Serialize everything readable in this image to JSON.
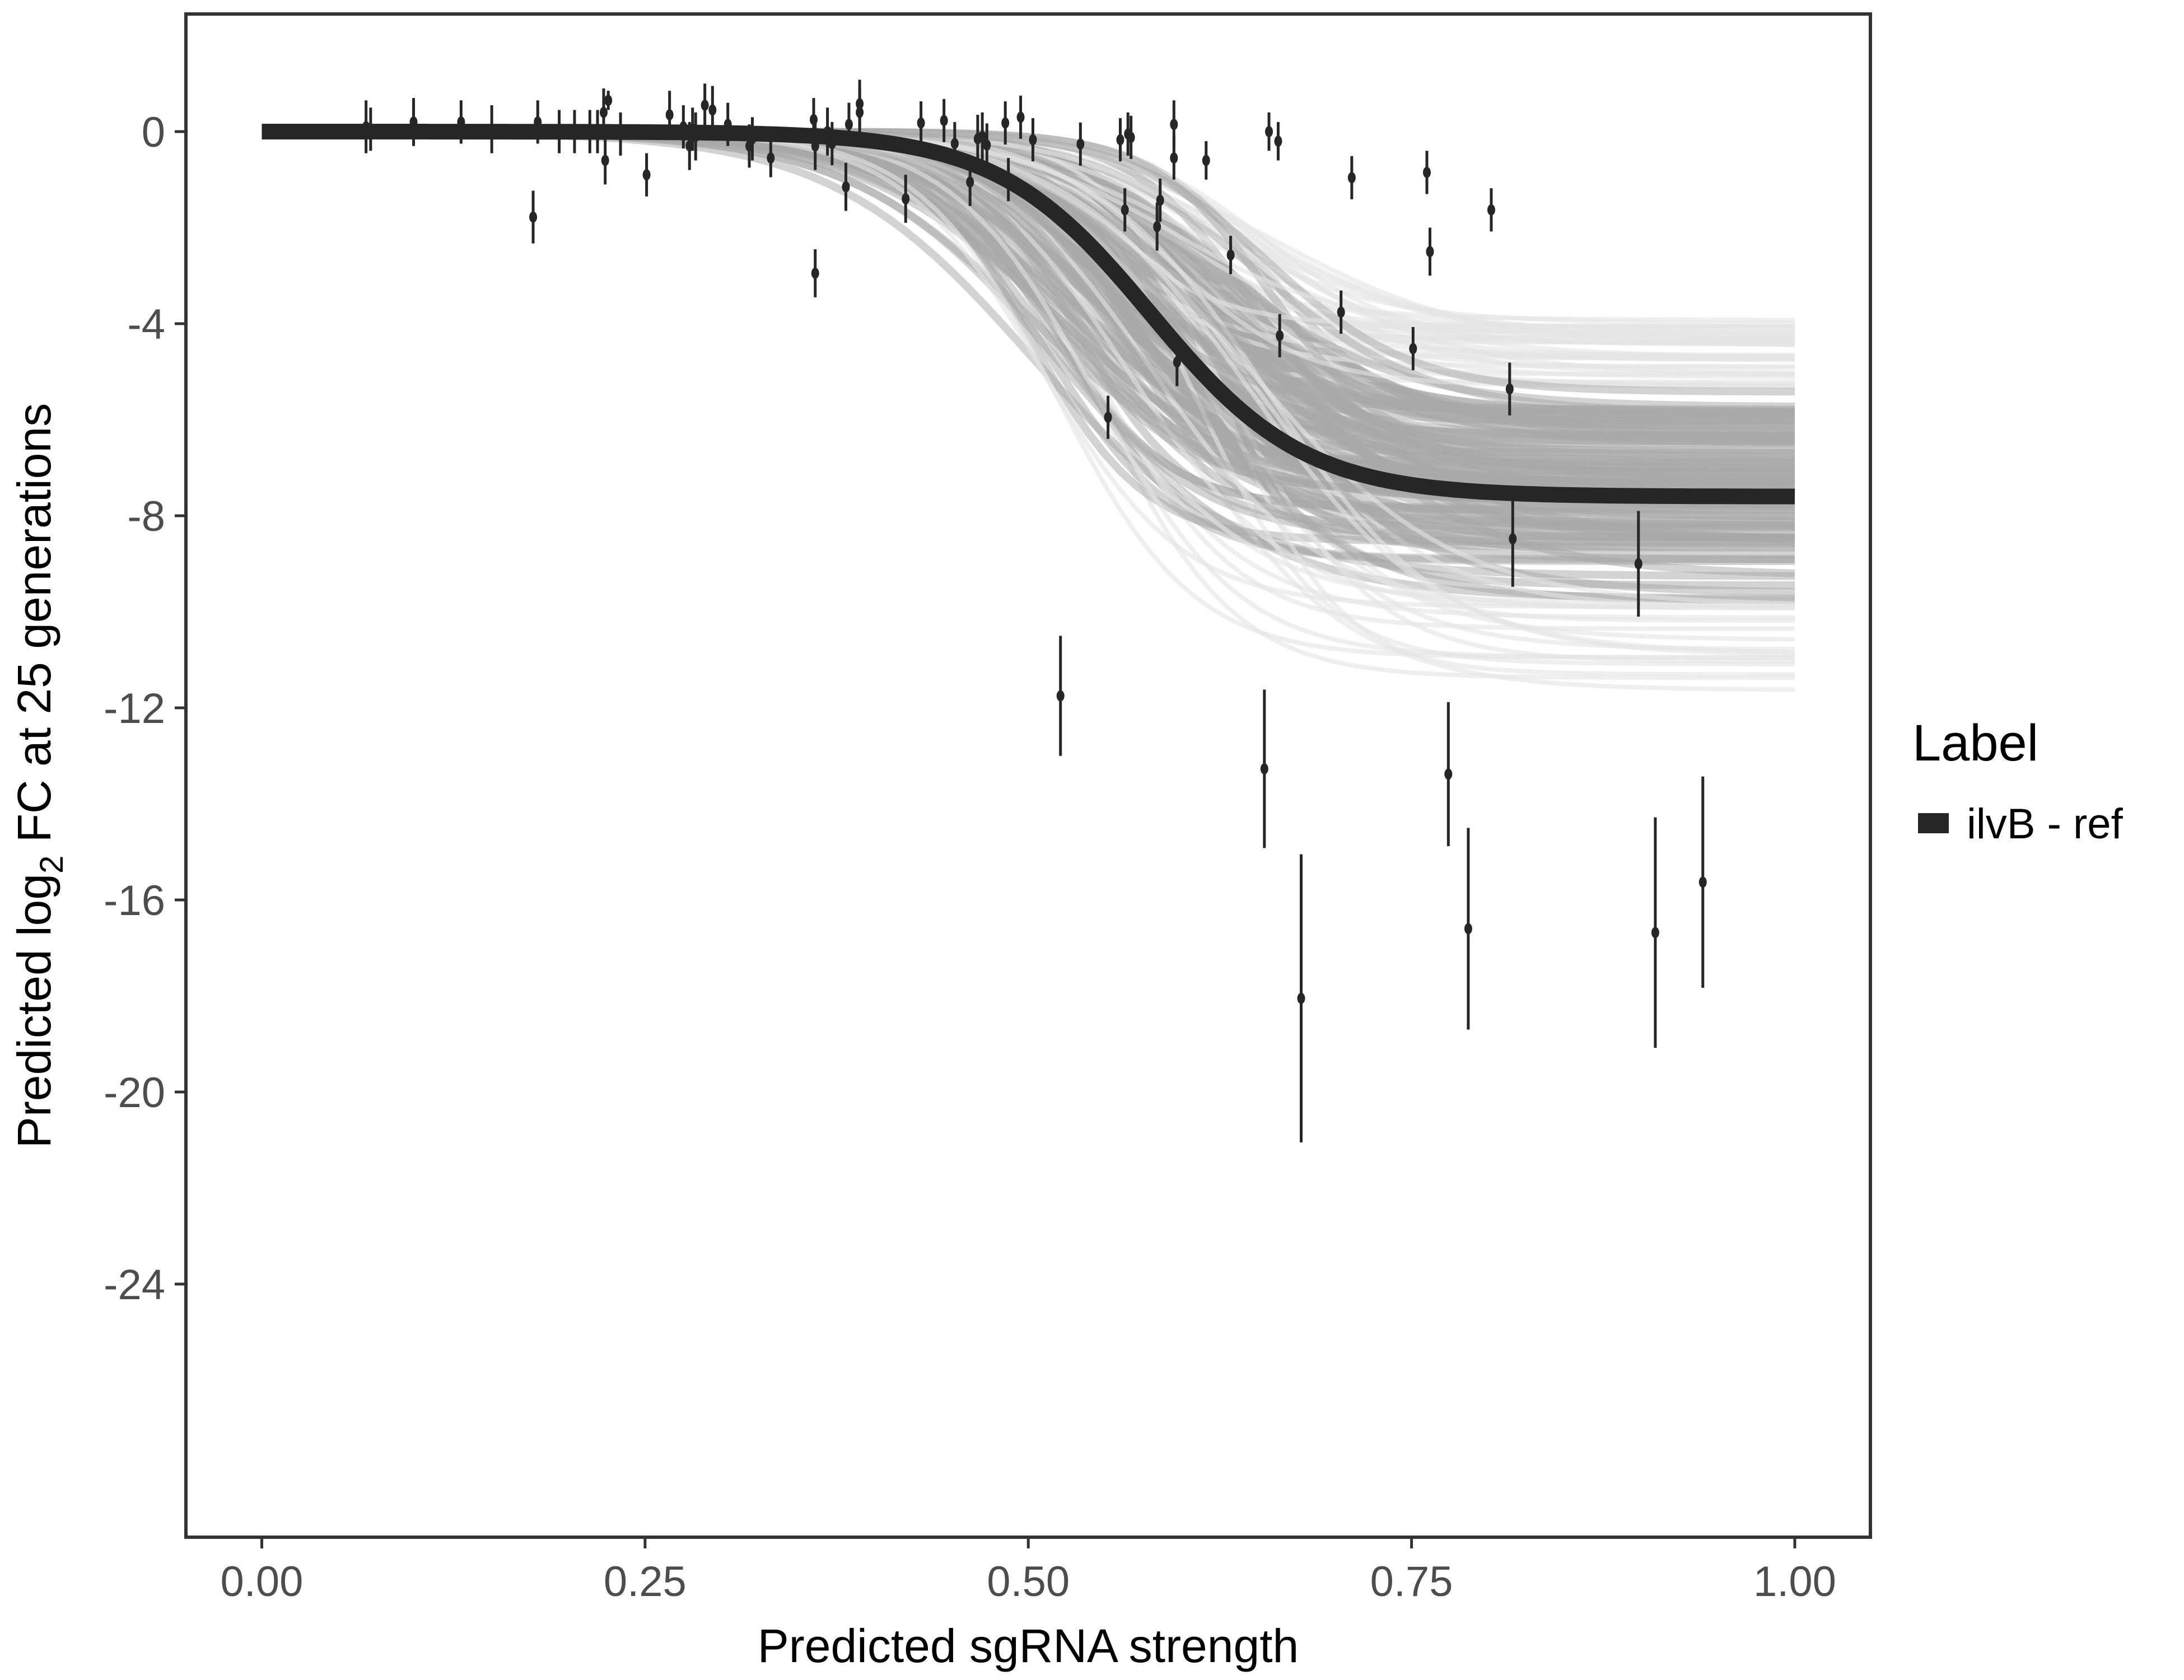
{
  "chart_data": {
    "type": "scatter",
    "xlabel": "Predicted sgRNA strength",
    "ylabel_parts": {
      "pre": "Predicted  log",
      "sub": "2",
      "post": " FC at 25 generations"
    },
    "xlim": [
      -0.05,
      1.05
    ],
    "ylim": [
      -29.2,
      2.5
    ],
    "xticks": [
      0,
      0.25,
      0.5,
      0.75,
      1
    ],
    "xtick_labels": [
      "0.00",
      "0.25",
      "0.50",
      "0.75",
      "1.00"
    ],
    "yticks": [
      0,
      -4,
      -8,
      -12,
      -16,
      -20,
      -24
    ],
    "ytick_labels": [
      "0",
      "-4",
      "-8",
      "-12",
      "-16",
      "-20",
      "-24"
    ],
    "grid": false,
    "legend": {
      "title": "Label",
      "placement": "right",
      "entries": [
        {
          "label": "ilvB - ref",
          "color": "#262626"
        }
      ]
    },
    "fit_curve": {
      "form": "logistic",
      "upper": 0,
      "lower": -7.6,
      "midpoint": 0.58,
      "scale": 0.05,
      "color": "#262626"
    },
    "posterior_band": {
      "lower_asymptote_range": [
        -11.8,
        -3.8
      ],
      "color": "#aaaaaa"
    },
    "points": [
      {
        "x": 0.068,
        "y": 0.1,
        "err": 0.55
      },
      {
        "x": 0.071,
        "y": 0.05,
        "err": 0.45
      },
      {
        "x": 0.099,
        "y": 0.2,
        "err": 0.5
      },
      {
        "x": 0.13,
        "y": 0.2,
        "err": 0.45
      },
      {
        "x": 0.15,
        "y": 0.05,
        "err": 0.5
      },
      {
        "x": 0.177,
        "y": -1.78,
        "err": 0.55
      },
      {
        "x": 0.18,
        "y": 0.2,
        "err": 0.45
      },
      {
        "x": 0.194,
        "y": 0.0,
        "err": 0.45
      },
      {
        "x": 0.204,
        "y": 0.0,
        "err": 0.45
      },
      {
        "x": 0.214,
        "y": 0.0,
        "err": 0.45
      },
      {
        "x": 0.219,
        "y": 0.0,
        "err": 0.45
      },
      {
        "x": 0.223,
        "y": 0.4,
        "err": 0.5
      },
      {
        "x": 0.224,
        "y": -0.6,
        "err": 0.5
      },
      {
        "x": 0.226,
        "y": 0.65,
        "err": 0.2
      },
      {
        "x": 0.234,
        "y": -0.05,
        "err": 0.45
      },
      {
        "x": 0.251,
        "y": -0.9,
        "err": 0.45
      },
      {
        "x": 0.266,
        "y": 0.35,
        "err": 0.5
      },
      {
        "x": 0.275,
        "y": 0.1,
        "err": 0.45
      },
      {
        "x": 0.279,
        "y": -0.3,
        "err": 0.5
      },
      {
        "x": 0.281,
        "y": 0.05,
        "err": 0.45
      },
      {
        "x": 0.283,
        "y": -0.1,
        "err": 0.5
      },
      {
        "x": 0.289,
        "y": 0.55,
        "err": 0.45
      },
      {
        "x": 0.294,
        "y": 0.45,
        "err": 0.5
      },
      {
        "x": 0.304,
        "y": 0.15,
        "err": 0.45
      },
      {
        "x": 0.318,
        "y": -0.3,
        "err": 0.45
      },
      {
        "x": 0.32,
        "y": -0.15,
        "err": 0.45
      },
      {
        "x": 0.332,
        "y": -0.55,
        "err": 0.4
      },
      {
        "x": 0.361,
        "y": -2.95,
        "err": 0.5
      },
      {
        "x": 0.36,
        "y": 0.25,
        "err": 0.45
      },
      {
        "x": 0.361,
        "y": -0.3,
        "err": 0.5
      },
      {
        "x": 0.369,
        "y": 0.0,
        "err": 0.5
      },
      {
        "x": 0.372,
        "y": -0.25,
        "err": 0.45
      },
      {
        "x": 0.381,
        "y": -1.15,
        "err": 0.5
      },
      {
        "x": 0.383,
        "y": 0.15,
        "err": 0.45
      },
      {
        "x": 0.39,
        "y": 0.4,
        "err": 0.5
      },
      {
        "x": 0.39,
        "y": 0.58,
        "err": 0.5
      },
      {
        "x": 0.42,
        "y": -1.4,
        "err": 0.5
      },
      {
        "x": 0.43,
        "y": 0.18,
        "err": 0.45
      },
      {
        "x": 0.445,
        "y": 0.23,
        "err": 0.45
      },
      {
        "x": 0.452,
        "y": -0.25,
        "err": 0.45
      },
      {
        "x": 0.462,
        "y": -1.05,
        "err": 0.5
      },
      {
        "x": 0.467,
        "y": -0.15,
        "err": 0.5
      },
      {
        "x": 0.47,
        "y": -0.1,
        "err": 0.5
      },
      {
        "x": 0.473,
        "y": -0.28,
        "err": 0.45
      },
      {
        "x": 0.485,
        "y": 0.18,
        "err": 0.45
      },
      {
        "x": 0.487,
        "y": -1.0,
        "err": 0.45
      },
      {
        "x": 0.495,
        "y": 0.3,
        "err": 0.45
      },
      {
        "x": 0.503,
        "y": -0.17,
        "err": 0.45
      },
      {
        "x": 0.521,
        "y": -11.75,
        "err": 1.25
      },
      {
        "x": 0.534,
        "y": -0.26,
        "err": 0.45
      },
      {
        "x": 0.552,
        "y": -5.95,
        "err": 0.45
      },
      {
        "x": 0.56,
        "y": -0.17,
        "err": 0.45
      },
      {
        "x": 0.563,
        "y": -1.63,
        "err": 0.45
      },
      {
        "x": 0.565,
        "y": -0.05,
        "err": 0.45
      },
      {
        "x": 0.567,
        "y": -0.12,
        "err": 0.45
      },
      {
        "x": 0.584,
        "y": -1.98,
        "err": 0.5
      },
      {
        "x": 0.586,
        "y": -1.43,
        "err": 0.45
      },
      {
        "x": 0.595,
        "y": 0.15,
        "err": 0.5
      },
      {
        "x": 0.595,
        "y": -0.55,
        "err": 0.45
      },
      {
        "x": 0.597,
        "y": -4.8,
        "err": 0.5
      },
      {
        "x": 0.616,
        "y": -0.6,
        "err": 0.4
      },
      {
        "x": 0.632,
        "y": -2.57,
        "err": 0.4
      },
      {
        "x": 0.654,
        "y": -13.27,
        "err": 1.65
      },
      {
        "x": 0.657,
        "y": 0.0,
        "err": 0.4
      },
      {
        "x": 0.663,
        "y": -0.2,
        "err": 0.4
      },
      {
        "x": 0.664,
        "y": -4.25,
        "err": 0.45
      },
      {
        "x": 0.678,
        "y": -18.05,
        "err": 3.0
      },
      {
        "x": 0.704,
        "y": -3.76,
        "err": 0.45
      },
      {
        "x": 0.711,
        "y": -0.96,
        "err": 0.45
      },
      {
        "x": 0.751,
        "y": -4.52,
        "err": 0.45
      },
      {
        "x": 0.76,
        "y": -0.85,
        "err": 0.45
      },
      {
        "x": 0.762,
        "y": -2.5,
        "err": 0.5
      },
      {
        "x": 0.774,
        "y": -13.38,
        "err": 1.5
      },
      {
        "x": 0.787,
        "y": -16.6,
        "err": 2.1
      },
      {
        "x": 0.802,
        "y": -1.63,
        "err": 0.45
      },
      {
        "x": 0.814,
        "y": -5.36,
        "err": 0.55
      },
      {
        "x": 0.816,
        "y": -8.48,
        "err": 1.0
      },
      {
        "x": 0.898,
        "y": -9.0,
        "err": 1.1
      },
      {
        "x": 0.909,
        "y": -16.68,
        "err": 2.4
      },
      {
        "x": 0.94,
        "y": -15.63,
        "err": 2.2
      }
    ]
  }
}
